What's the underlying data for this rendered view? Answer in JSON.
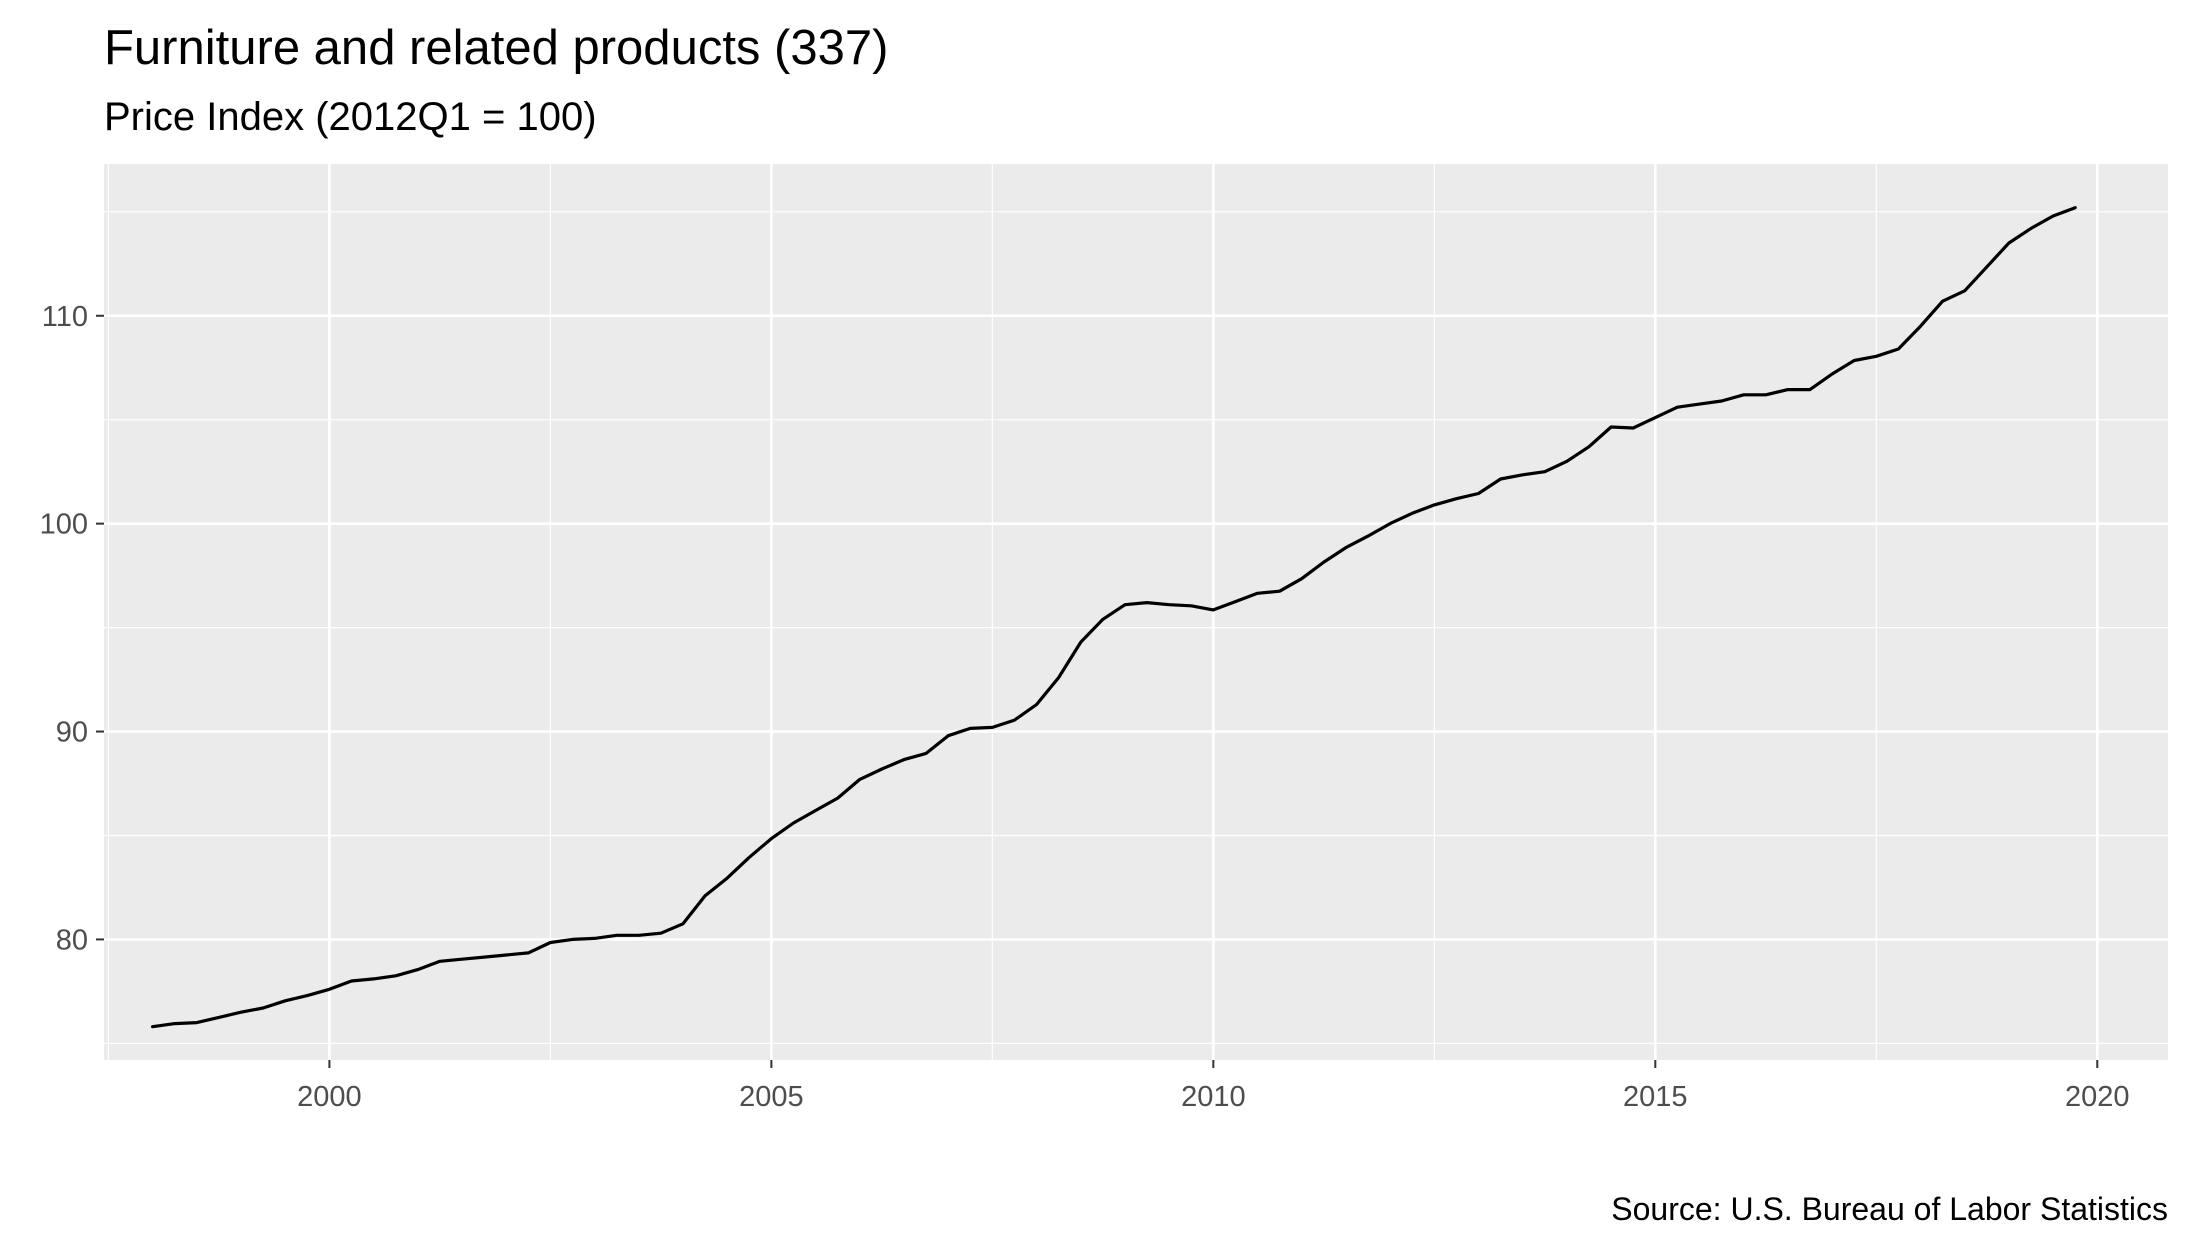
{
  "chart_data": {
    "type": "line",
    "title": "Furniture and related products (337)",
    "subtitle": "Price Index (2012Q1 = 100)",
    "caption": "Source: U.S. Bureau of Labor Statistics",
    "xlabel": "",
    "ylabel": "",
    "xlim": [
      1997.45,
      2020.8
    ],
    "ylim": [
      74.2,
      117.3
    ],
    "x_ticks": [
      2000,
      2005,
      2010,
      2015,
      2020
    ],
    "y_ticks": [
      80,
      90,
      100,
      110
    ],
    "grid": true,
    "legend": "none",
    "colors": {
      "panel": "#ebebeb",
      "grid": "#ffffff",
      "line": "#000000",
      "tick": "#4d4d4d"
    },
    "series": [
      {
        "x": [
          1998.0,
          1998.25,
          1998.5,
          1998.75,
          1999.0,
          1999.25,
          1999.5,
          1999.75,
          2000.0,
          2000.25,
          2000.5,
          2000.75,
          2001.0,
          2001.25,
          2001.5,
          2001.75,
          2002.0,
          2002.25,
          2002.5,
          2002.75,
          2003.0,
          2003.25,
          2003.5,
          2003.75,
          2004.0,
          2004.25,
          2004.5,
          2004.75,
          2005.0,
          2005.25,
          2005.5,
          2005.75,
          2006.0,
          2006.25,
          2006.5,
          2006.75,
          2007.0,
          2007.25,
          2007.5,
          2007.75,
          2008.0,
          2008.25,
          2008.5,
          2008.75,
          2009.0,
          2009.25,
          2009.5,
          2009.75,
          2010.0,
          2010.25,
          2010.5,
          2010.75,
          2011.0,
          2011.25,
          2011.5,
          2011.75,
          2012.0,
          2012.25,
          2012.5,
          2012.75,
          2013.0,
          2013.25,
          2013.5,
          2013.75,
          2014.0,
          2014.25,
          2014.5,
          2014.75,
          2015.0,
          2015.25,
          2015.5,
          2015.75,
          2016.0,
          2016.25,
          2016.5,
          2016.75,
          2017.0,
          2017.25,
          2017.5,
          2017.75,
          2018.0,
          2018.25,
          2018.5,
          2018.75,
          2019.0,
          2019.25,
          2019.5,
          2019.75
        ],
        "values": [
          75.8,
          75.95,
          76.0,
          76.25,
          76.5,
          76.7,
          77.05,
          77.3,
          77.6,
          78.0,
          78.1,
          78.25,
          78.55,
          78.95,
          79.05,
          79.15,
          79.25,
          79.35,
          79.85,
          80.0,
          80.05,
          80.2,
          80.2,
          80.3,
          80.75,
          82.1,
          82.95,
          83.95,
          84.85,
          85.6,
          86.2,
          86.8,
          87.7,
          88.2,
          88.65,
          88.95,
          89.8,
          90.15,
          90.2,
          90.55,
          91.3,
          92.6,
          94.3,
          95.4,
          96.1,
          96.2,
          96.1,
          96.05,
          95.85,
          96.25,
          96.65,
          96.75,
          97.35,
          98.15,
          98.85,
          99.4,
          100.0,
          100.5,
          100.9,
          101.2,
          101.45,
          102.15,
          102.35,
          102.5,
          103.0,
          103.7,
          104.65,
          104.6,
          105.1,
          105.6,
          105.75,
          105.9,
          106.2,
          106.2,
          106.45,
          106.45,
          107.2,
          107.85,
          108.05,
          108.4,
          109.5,
          110.7,
          111.2,
          112.35,
          113.5,
          114.2,
          114.8,
          115.2
        ]
      }
    ]
  }
}
